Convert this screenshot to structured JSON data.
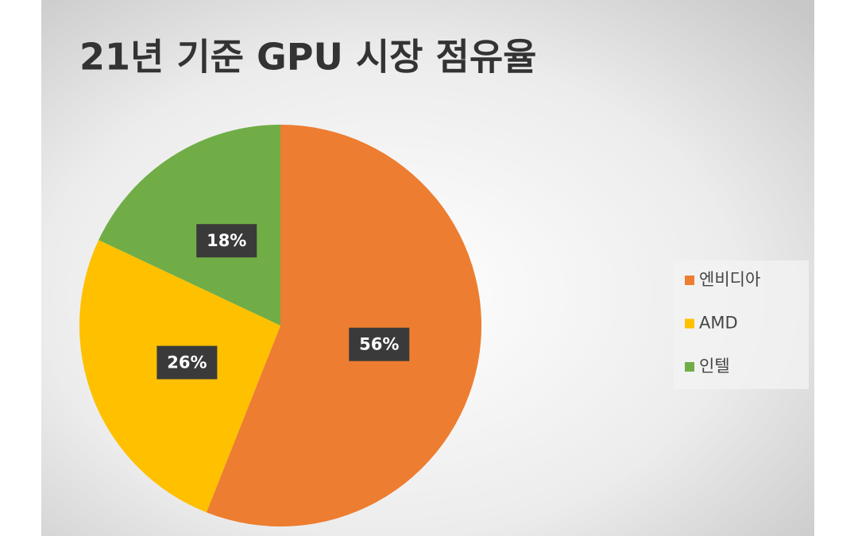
{
  "chart_data": {
    "type": "pie",
    "title": "21년 기준 GPU 시장 점유율",
    "categories": [
      "엔비디아",
      "AMD",
      "인텔"
    ],
    "values": [
      56,
      26,
      18
    ],
    "value_labels": [
      "56%",
      "26%",
      "18%"
    ],
    "colors": [
      "#ed7d31",
      "#ffc000",
      "#70ad47"
    ],
    "legend": "right"
  }
}
